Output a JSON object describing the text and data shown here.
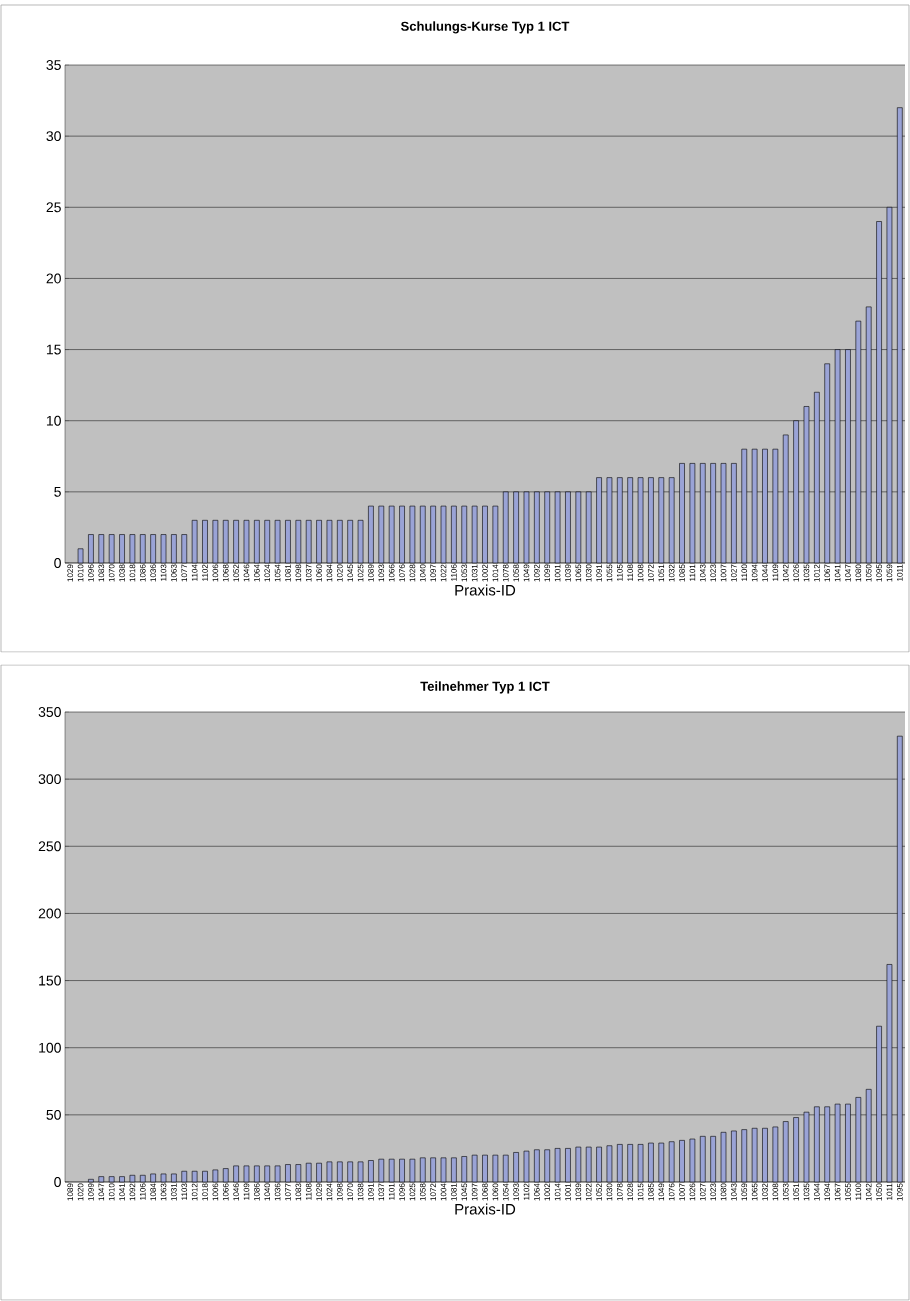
{
  "chart_data": [
    {
      "type": "bar",
      "title": "Schulungs-Kurse Typ 1 ICT",
      "xlabel": "Praxis-ID",
      "categories": [
        "1029",
        "1010",
        "1096",
        "1083",
        "1070",
        "1038",
        "1018",
        "1086",
        "1036",
        "1103",
        "1063",
        "1077",
        "1104",
        "1102",
        "1006",
        "1068",
        "1052",
        "1046",
        "1064",
        "1024",
        "1054",
        "1081",
        "1098",
        "1037",
        "1060",
        "1084",
        "1020",
        "1045",
        "1025",
        "1089",
        "1093",
        "1066",
        "1076",
        "1028",
        "1040",
        "1097",
        "1022",
        "1106",
        "1053",
        "1031",
        "1002",
        "1014",
        "1078",
        "1058",
        "1049",
        "1092",
        "1099",
        "1001",
        "1039",
        "1065",
        "1030",
        "1091",
        "1055",
        "1105",
        "1108",
        "1008",
        "1072",
        "1051",
        "1032",
        "1085",
        "1101",
        "1043",
        "1023",
        "1007",
        "1027",
        "1100",
        "1094",
        "1044",
        "1109",
        "1042",
        "1026",
        "1035",
        "1012",
        "1067",
        "1041",
        "1047",
        "1080",
        "1050",
        "1095",
        "1059",
        "1011"
      ],
      "values": [
        0,
        1,
        2,
        2,
        2,
        2,
        2,
        2,
        2,
        2,
        2,
        2,
        3,
        3,
        3,
        3,
        3,
        3,
        3,
        3,
        3,
        3,
        3,
        3,
        3,
        3,
        3,
        3,
        3,
        4,
        4,
        4,
        4,
        4,
        4,
        4,
        4,
        4,
        4,
        4,
        4,
        4,
        5,
        5,
        5,
        5,
        5,
        5,
        5,
        5,
        5,
        6,
        6,
        6,
        6,
        6,
        6,
        6,
        6,
        7,
        7,
        7,
        7,
        7,
        7,
        8,
        8,
        8,
        8,
        9,
        10,
        11,
        12,
        14,
        15,
        15,
        17,
        18,
        24,
        25,
        32
      ],
      "color": "#9aa3d6",
      "ylim": [
        0,
        35
      ],
      "yticks": [
        0,
        5,
        10,
        15,
        20,
        25,
        30,
        35
      ],
      "grid": "y"
    },
    {
      "type": "bar",
      "title": "Teilnehmer Typ 1 ICT",
      "xlabel": "Praxis-ID",
      "categories": [
        "1089",
        "1020",
        "1099",
        "1047",
        "1010",
        "1041",
        "1092",
        "1106",
        "1084",
        "1063",
        "1031",
        "1103",
        "1012",
        "1018",
        "1006",
        "1066",
        "1046",
        "1109",
        "1086",
        "1040",
        "1036",
        "1077",
        "1083",
        "1108",
        "1029",
        "1024",
        "1098",
        "1070",
        "1038",
        "1091",
        "1037",
        "1101",
        "1096",
        "1025",
        "1058",
        "1072",
        "1004",
        "1081",
        "1045",
        "1097",
        "1068",
        "1060",
        "1054",
        "1093",
        "1102",
        "1064",
        "1002",
        "1014",
        "1001",
        "1039",
        "1022",
        "1052",
        "1030",
        "1078",
        "1028",
        "1015",
        "1085",
        "1049",
        "1076",
        "1007",
        "1026",
        "1027",
        "1023",
        "1080",
        "1043",
        "1059",
        "1065",
        "1032",
        "1008",
        "1053",
        "1051",
        "1035",
        "1044",
        "1094",
        "1067",
        "1055",
        "1100",
        "1042",
        "1050",
        "1011",
        "1095"
      ],
      "values": [
        0,
        0,
        2,
        4,
        4,
        4,
        5,
        5,
        6,
        6,
        6,
        8,
        8,
        8,
        9,
        10,
        12,
        12,
        12,
        12,
        12,
        13,
        13,
        14,
        14,
        15,
        15,
        15,
        15,
        16,
        17,
        17,
        17,
        17,
        18,
        18,
        18,
        18,
        19,
        20,
        20,
        20,
        20,
        22,
        23,
        24,
        24,
        25,
        25,
        26,
        26,
        26,
        27,
        28,
        28,
        28,
        29,
        29,
        30,
        31,
        32,
        34,
        34,
        37,
        38,
        39,
        40,
        40,
        41,
        45,
        48,
        52,
        56,
        56,
        58,
        58,
        63,
        69,
        116,
        162,
        332
      ],
      "color": "#9aa3d6",
      "ylim": [
        0,
        350
      ],
      "yticks": [
        0,
        50,
        100,
        150,
        200,
        250,
        300,
        350
      ],
      "grid": "y"
    }
  ]
}
